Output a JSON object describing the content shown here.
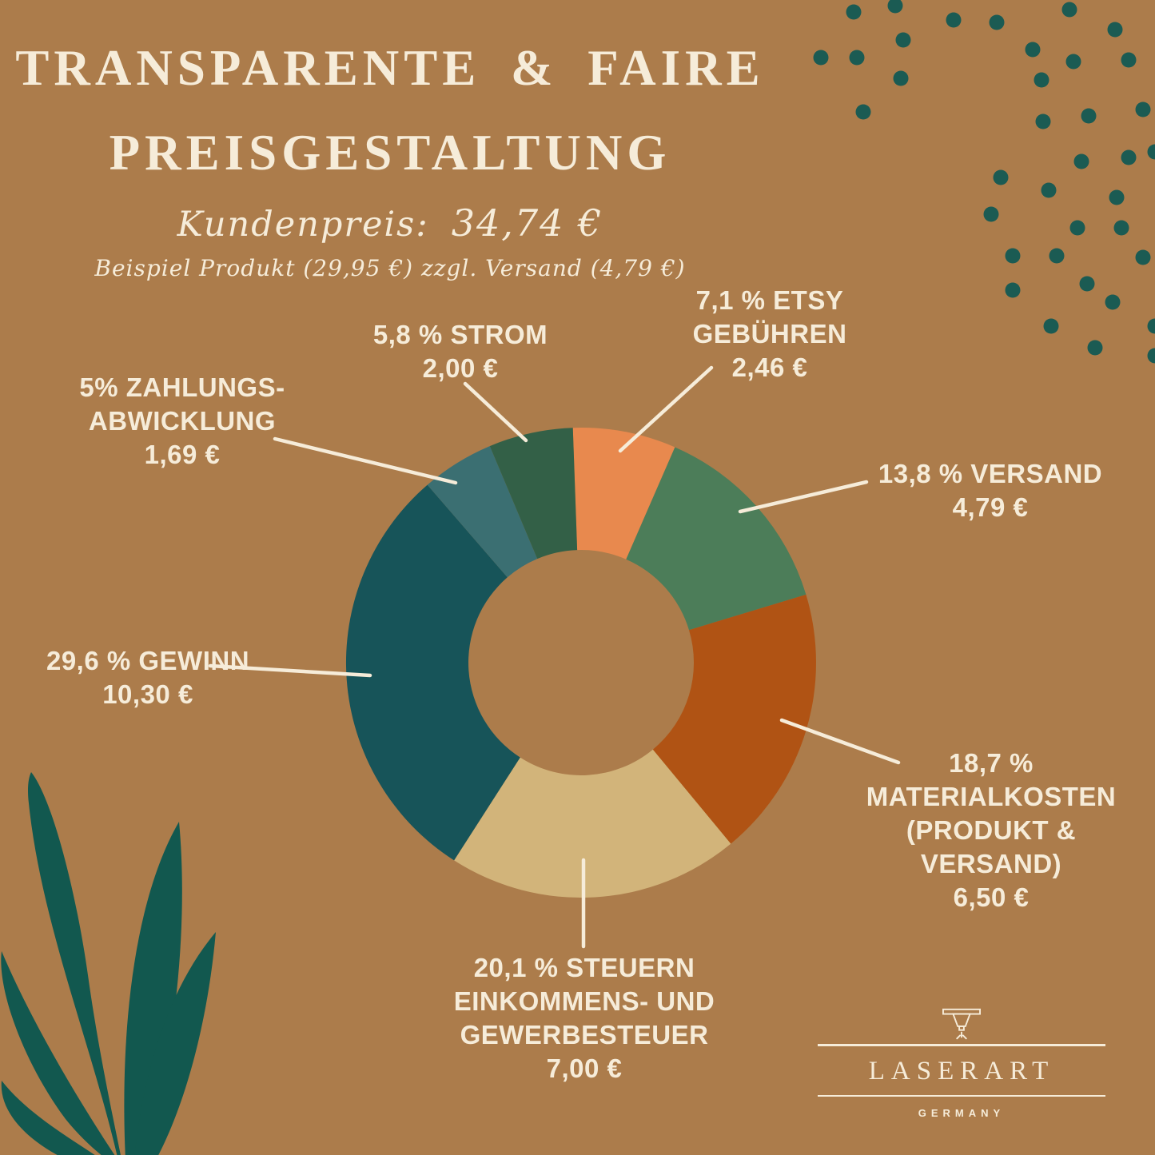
{
  "header": {
    "title_line1": "TRANSPARENTE & FAIRE",
    "title_line2": "PREISGESTALTUNG",
    "price_label": "Kundenpreis:",
    "price_value": "34,74 €",
    "note": "Beispiel Produkt (29,95 €) zzgl. Versand (4,79 €)"
  },
  "chart_data": {
    "type": "pie",
    "variant": "donut",
    "title": "Transparente & Faire Preisgestaltung",
    "total_label": "Kundenpreis: 34,74 €",
    "unit": "EUR",
    "start_angle_deg": -2,
    "direction": "clockwise",
    "inner_radius_ratio": 0.48,
    "segments": [
      {
        "key": "etsy-gebuehren",
        "label": "ETSY Gebühren",
        "pct": 7.1,
        "value": "2,46 €",
        "color": "#E8894E"
      },
      {
        "key": "versand",
        "label": "Versand",
        "pct": 13.8,
        "value": "4,79 €",
        "color": "#4C7D59"
      },
      {
        "key": "materialkosten",
        "label": "Materialkosten (Produkt & Versand)",
        "pct": 18.7,
        "value": "6,50 €",
        "color": "#B05314"
      },
      {
        "key": "steuern",
        "label": "Steuern Einkommens- und Gewerbesteuer",
        "pct": 20.1,
        "value": "7,00 €",
        "color": "#D2B47A"
      },
      {
        "key": "gewinn",
        "label": "Gewinn",
        "pct": 29.6,
        "value": "10,30 €",
        "color": "#175459"
      },
      {
        "key": "zahlungsabwicklung",
        "label": "Zahlungsabwicklung",
        "pct": 5.0,
        "value": "1,69 €",
        "color": "#3B6F72"
      },
      {
        "key": "strom",
        "label": "Strom",
        "pct": 5.8,
        "value": "2,00 €",
        "color": "#336047"
      }
    ]
  },
  "callouts": {
    "zahlungs": {
      "lines": [
        "5% ZAHLUNGS-",
        "ABWICKLUNG",
        "1,69 €"
      ]
    },
    "strom": {
      "lines": [
        "5,8 % STROM",
        "2,00 €"
      ]
    },
    "etsy": {
      "lines": [
        "7,1 % ETSY",
        "GEBÜHREN",
        "2,46 €"
      ]
    },
    "versand": {
      "lines": [
        "13,8 % VERSAND",
        "4,79 €"
      ]
    },
    "gewinn": {
      "lines": [
        "29,6 % GEWINN",
        "10,30 €"
      ]
    },
    "material": {
      "lines": [
        "18,7 %",
        "MATERIALKOSTEN",
        "(PRODUKT &",
        "VERSAND)",
        "6,50 €"
      ]
    },
    "steuern": {
      "lines": [
        "20,1 % STEUERN",
        "EINKOMMENS- UND",
        "GEWERBESTEUER",
        "7,00 €"
      ]
    }
  },
  "logo": {
    "wordmark": "LASERART",
    "subtext": "GERMANY"
  },
  "colors": {
    "background": "#AC7C4B",
    "text": "#F6ECD9",
    "dots": "#1B5B53",
    "leaves": "#12584F"
  }
}
